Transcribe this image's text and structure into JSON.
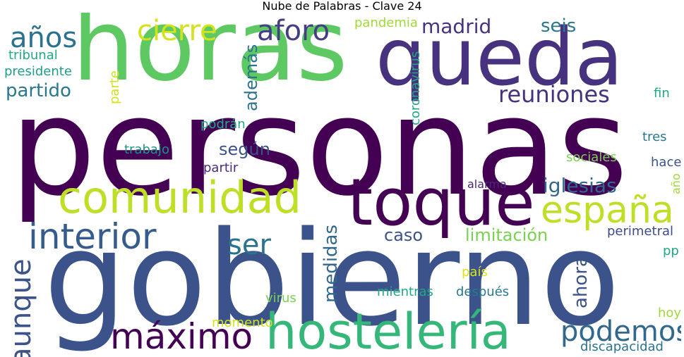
{
  "title": "Nube de Palabras - Clave 24",
  "words": [
    {
      "text": "personas",
      "color": "#440154"
    },
    {
      "text": "gobierno",
      "color": "#3b528b"
    },
    {
      "text": "horas",
      "color": "#5ec962"
    },
    {
      "text": "queda",
      "color": "#46327e"
    },
    {
      "text": "toque",
      "color": "#440154"
    },
    {
      "text": "hostelería",
      "color": "#35b779"
    },
    {
      "text": "comunidad",
      "color": "#bddf26"
    },
    {
      "text": "españa",
      "color": "#bddf26"
    },
    {
      "text": "interior",
      "color": "#365c8d"
    },
    {
      "text": "máximo",
      "color": "#440154"
    },
    {
      "text": "podemos",
      "color": "#31688e"
    },
    {
      "text": "años",
      "color": "#2c728e"
    },
    {
      "text": "cierre",
      "color": "#d2e21b"
    },
    {
      "text": "aforo",
      "color": "#433e85"
    },
    {
      "text": "reuniones",
      "color": "#46327e"
    },
    {
      "text": "ser",
      "color": "#2c728e"
    },
    {
      "text": "aunque",
      "color": "#3b528b"
    },
    {
      "text": "iglesias",
      "color": "#31688e"
    },
    {
      "text": "madrid",
      "color": "#46327e"
    },
    {
      "text": "partido",
      "color": "#2a788e"
    },
    {
      "text": "seis",
      "color": "#2a788e"
    },
    {
      "text": "además",
      "color": "#2c728e"
    },
    {
      "text": "medidas",
      "color": "#31688e"
    },
    {
      "text": "según",
      "color": "#3b528b"
    },
    {
      "text": "caso",
      "color": "#3b528b"
    },
    {
      "text": "limitación",
      "color": "#7ad151"
    },
    {
      "text": "ahora",
      "color": "#3b528b"
    },
    {
      "text": "pandemia",
      "color": "#a0da39"
    },
    {
      "text": "tribunal",
      "color": "#22a884"
    },
    {
      "text": "presidente",
      "color": "#1f9e89"
    },
    {
      "text": "parte",
      "color": "#d2e21b"
    },
    {
      "text": "coronavirus",
      "color": "#22a884"
    },
    {
      "text": "fin",
      "color": "#22a884"
    },
    {
      "text": "podrán",
      "color": "#22a884"
    },
    {
      "text": "trabajo",
      "color": "#21918c"
    },
    {
      "text": "partir",
      "color": "#472d7b"
    },
    {
      "text": "tres",
      "color": "#2a788e"
    },
    {
      "text": "sociales",
      "color": "#7ad151"
    },
    {
      "text": "hace",
      "color": "#3b528b"
    },
    {
      "text": "año",
      "color": "#a0da39"
    },
    {
      "text": "alarma",
      "color": "#482878"
    },
    {
      "text": "perimetral",
      "color": "#3e4a89"
    },
    {
      "text": "pp",
      "color": "#22a884"
    },
    {
      "text": "país",
      "color": "#dde318"
    },
    {
      "text": "virus",
      "color": "#7ad151"
    },
    {
      "text": "mientras",
      "color": "#22a884"
    },
    {
      "text": "después",
      "color": "#2a788e"
    },
    {
      "text": "momento",
      "color": "#d2e21b"
    },
    {
      "text": "hoy",
      "color": "#a0da39"
    },
    {
      "text": "discapacidad",
      "color": "#2c728e"
    }
  ]
}
